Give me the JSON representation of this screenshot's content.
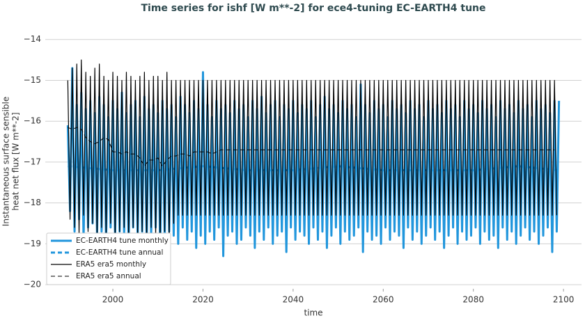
{
  "chart_data": {
    "type": "line",
    "title": "Time series for ishf [W m**-2] for ece4-tuning EC-EARTH4 tune",
    "xlabel": "time",
    "ylabel": [
      "Instantaneous surface sensible",
      "heat net flux [W m**-2]"
    ],
    "xlim": [
      1985,
      2104
    ],
    "ylim": [
      -20.1,
      -13.8
    ],
    "xticks": [
      2000,
      2020,
      2040,
      2060,
      2080,
      2100
    ],
    "yticks": [
      {
        "value": -20,
        "label": "−20"
      },
      {
        "value": -19,
        "label": "−19"
      },
      {
        "value": -18,
        "label": "−18"
      },
      {
        "value": -17,
        "label": "−17"
      },
      {
        "value": -16,
        "label": "−16"
      },
      {
        "value": -15,
        "label": "−15"
      },
      {
        "value": -14,
        "label": "−14"
      }
    ],
    "grid": true,
    "legend": "lower left",
    "x": [
      1990,
      1990.5,
      1991,
      1991.5,
      1992,
      1992.5,
      1993,
      1993.5,
      1994,
      1994.5,
      1995,
      1995.5,
      1996,
      1996.5,
      1997,
      1997.5,
      1998,
      1998.5,
      1999,
      1999.5,
      2000,
      2000.5,
      2001,
      2001.5,
      2002,
      2002.5,
      2003,
      2003.5,
      2004,
      2004.5,
      2005,
      2005.5,
      2006,
      2006.5,
      2007,
      2007.5,
      2008,
      2008.5,
      2009,
      2009.5,
      2010,
      2010.5,
      2011,
      2011.5,
      2012,
      2012.5,
      2013,
      2013.5,
      2014,
      2014.5,
      2015,
      2015.5,
      2016,
      2016.5,
      2017,
      2017.5,
      2018,
      2018.5,
      2019,
      2019.5,
      2020,
      2020.5,
      2021,
      2021.5,
      2022,
      2022.5,
      2023,
      2023.5,
      2024,
      2024.5,
      2025,
      2025.5,
      2026,
      2026.5,
      2027,
      2027.5,
      2028,
      2028.5,
      2029,
      2029.5,
      2030,
      2030.5,
      2031,
      2031.5,
      2032,
      2032.5,
      2033,
      2033.5,
      2034,
      2034.5,
      2035,
      2035.5,
      2036,
      2036.5,
      2037,
      2037.5,
      2038,
      2038.5,
      2039,
      2039.5,
      2040,
      2040.5,
      2041,
      2041.5,
      2042,
      2042.5,
      2043,
      2043.5,
      2044,
      2044.5,
      2045,
      2045.5,
      2046,
      2046.5,
      2047,
      2047.5,
      2048,
      2048.5,
      2049,
      2049.5,
      2050,
      2050.5,
      2051,
      2051.5,
      2052,
      2052.5,
      2053,
      2053.5,
      2054,
      2054.5,
      2055,
      2055.5,
      2056,
      2056.5,
      2057,
      2057.5,
      2058,
      2058.5,
      2059,
      2059.5,
      2060,
      2060.5,
      2061,
      2061.5,
      2062,
      2062.5,
      2063,
      2063.5,
      2064,
      2064.5,
      2065,
      2065.5,
      2066,
      2066.5,
      2067,
      2067.5,
      2068,
      2068.5,
      2069,
      2069.5,
      2070,
      2070.5,
      2071,
      2071.5,
      2072,
      2072.5,
      2073,
      2073.5,
      2074,
      2074.5,
      2075,
      2075.5,
      2076,
      2076.5,
      2077,
      2077.5,
      2078,
      2078.5,
      2079,
      2079.5,
      2080,
      2080.5,
      2081,
      2081.5,
      2082,
      2082.5,
      2083,
      2083.5,
      2084,
      2084.5,
      2085,
      2085.5,
      2086,
      2086.5,
      2087,
      2087.5,
      2088,
      2088.5,
      2089,
      2089.5,
      2090,
      2090.5,
      2091,
      2091.5,
      2092,
      2092.5,
      2093,
      2093.5,
      2094,
      2094.5,
      2095,
      2095.5,
      2096,
      2096.5,
      2097,
      2097.5,
      2098,
      2098.5,
      2099
    ],
    "series": [
      {
        "name": "EC-EARTH4 tune monthly",
        "color": "#2196dc",
        "width": 3,
        "dash": "solid",
        "values": [
          -16.1,
          -18.2,
          -14.7,
          -18.7,
          -15.6,
          -18.4,
          -15.3,
          -18.9,
          -15.7,
          -18.6,
          -15.5,
          -18.5,
          -15.8,
          -18.8,
          -15.4,
          -18.7,
          -15.6,
          -19.0,
          -15.9,
          -18.6,
          -15.5,
          -18.9,
          -15.7,
          -18.7,
          -15.3,
          -18.8,
          -15.8,
          -19.1,
          -15.6,
          -18.6,
          -15.5,
          -18.9,
          -15.9,
          -18.7,
          -15.4,
          -19.0,
          -15.7,
          -18.8,
          -15.6,
          -18.6,
          -15.8,
          -19.2,
          -15.5,
          -18.9,
          -15.7,
          -18.7,
          -15.6,
          -18.8,
          -15.9,
          -19.0,
          -15.4,
          -18.6,
          -15.6,
          -18.9,
          -15.8,
          -18.7,
          -15.5,
          -19.1,
          -15.7,
          -18.8,
          -14.8,
          -19.0,
          -15.6,
          -18.7,
          -15.9,
          -18.9,
          -15.5,
          -18.6,
          -15.7,
          -19.3,
          -15.6,
          -18.8,
          -15.8,
          -18.7,
          -15.5,
          -19.0,
          -15.7,
          -18.9,
          -15.6,
          -18.6,
          -15.9,
          -18.8,
          -15.5,
          -19.1,
          -15.7,
          -18.7,
          -15.4,
          -18.9,
          -15.8,
          -18.6,
          -15.6,
          -19.0,
          -15.5,
          -18.8,
          -15.9,
          -18.7,
          -15.6,
          -19.2,
          -15.7,
          -18.6,
          -15.5,
          -18.9,
          -15.8,
          -18.7,
          -15.6,
          -18.8,
          -15.7,
          -19.0,
          -15.5,
          -18.6,
          -15.9,
          -18.9,
          -15.6,
          -18.7,
          -15.4,
          -19.1,
          -15.7,
          -18.8,
          -15.6,
          -18.6,
          -15.8,
          -19.0,
          -15.5,
          -18.7,
          -15.7,
          -18.9,
          -15.6,
          -18.8,
          -15.9,
          -18.6,
          -15.1,
          -19.2,
          -15.6,
          -18.7,
          -15.8,
          -18.9,
          -15.5,
          -18.8,
          -15.7,
          -19.0,
          -15.6,
          -18.6,
          -15.9,
          -18.9,
          -15.5,
          -18.7,
          -15.7,
          -18.8,
          -15.6,
          -19.1,
          -15.8,
          -18.6,
          -15.5,
          -18.9,
          -15.7,
          -18.7,
          -15.6,
          -19.0,
          -15.9,
          -18.8,
          -15.5,
          -18.6,
          -15.7,
          -18.9,
          -15.6,
          -18.7,
          -15.8,
          -19.1,
          -15.5,
          -18.8,
          -15.7,
          -18.6,
          -15.6,
          -19.0,
          -15.9,
          -18.7,
          -15.5,
          -18.9,
          -15.7,
          -18.8,
          -15.6,
          -18.6,
          -15.8,
          -19.0,
          -15.5,
          -18.7,
          -15.7,
          -18.9,
          -15.6,
          -18.8,
          -15.9,
          -19.1,
          -15.5,
          -18.6,
          -15.7,
          -18.9,
          -15.6,
          -18.7,
          -15.8,
          -19.0,
          -15.5,
          -18.8,
          -15.7,
          -18.6,
          -15.6,
          -18.9,
          -15.9,
          -18.7,
          -15.5,
          -19.0,
          -15.7,
          -18.8,
          -15.6,
          -18.6,
          -15.8,
          -19.2,
          -15.5,
          -18.7,
          -15.5
        ]
      },
      {
        "name": "EC-EARTH4 tune annual",
        "color": "#2196dc",
        "width": 3,
        "dash": "dashed",
        "x": [
          1990,
          2000,
          2010,
          2020,
          2030,
          2040,
          2050,
          2060,
          2070,
          2080,
          2090,
          2099
        ],
        "values": [
          -17.1,
          -17.2,
          -17.2,
          -17.1,
          -17.2,
          -17.2,
          -17.1,
          -17.2,
          -17.2,
          -17.2,
          -17.1,
          -17.2
        ]
      },
      {
        "name": "ERA5 era5 monthly",
        "color": "#000000",
        "width": 1.2,
        "dash": "solid",
        "values": [
          -15,
          -18.4,
          -14.7,
          -18.6,
          -14.6,
          -18.8,
          -14.5,
          -18.3,
          -14.8,
          -18.7,
          -14.9,
          -18.5,
          -14.7,
          -18.9,
          -14.6,
          -18.6,
          -14.9,
          -18.8,
          -15,
          -18.5,
          -14.8,
          -18.9,
          -14.9,
          -18.7,
          -15,
          -18.6,
          -14.8,
          -18.9,
          -14.9,
          -18.6,
          -15,
          -18.8,
          -14.9,
          -18.7,
          -14.8,
          -18.9,
          -15,
          -18.6,
          -14.9,
          -18.8,
          -14.9,
          -18.9,
          -15,
          -18.7,
          -14.8,
          -18.9,
          -15,
          -18.5,
          -15,
          -18.3,
          -15,
          -18.3,
          -15,
          -18.3,
          -15,
          -18.3,
          -15,
          -18.3,
          -15,
          -18.3,
          -15,
          -18.3,
          -15,
          -18.3,
          -15,
          -18.3,
          -15,
          -18.3,
          -15,
          -18.3,
          -15,
          -18.3,
          -15,
          -18.3,
          -15,
          -18.3,
          -15,
          -18.3,
          -15,
          -18.3,
          -15,
          -18.3,
          -15,
          -18.3,
          -15,
          -18.3,
          -15,
          -18.3,
          -15,
          -18.3,
          -15,
          -18.3,
          -15,
          -18.3,
          -15,
          -18.3,
          -15,
          -18.3,
          -15,
          -18.3,
          -15,
          -18.3,
          -15,
          -18.3,
          -15,
          -18.3,
          -15,
          -18.3,
          -15,
          -18.3,
          -15,
          -18.3,
          -15,
          -18.3,
          -15,
          -18.3,
          -15,
          -18.3,
          -15,
          -18.3,
          -15,
          -18.3,
          -15,
          -18.3,
          -15,
          -18.3,
          -15,
          -18.3,
          -15,
          -18.3,
          -15,
          -18.3,
          -15,
          -18.3,
          -15,
          -18.3,
          -15,
          -18.3,
          -15,
          -18.3,
          -15,
          -18.3,
          -15,
          -18.3,
          -15,
          -18.3,
          -15,
          -18.3,
          -15,
          -18.3,
          -15,
          -18.3,
          -15,
          -18.3,
          -15,
          -18.3,
          -15,
          -18.3,
          -15,
          -18.3,
          -15,
          -18.3,
          -15,
          -18.3,
          -15,
          -18.3,
          -15,
          -18.3,
          -15,
          -18.3,
          -15,
          -18.3,
          -15,
          -18.3,
          -15,
          -18.3,
          -15,
          -18.3,
          -15,
          -18.3,
          -15,
          -18.3,
          -15,
          -18.3,
          -15,
          -18.3,
          -15,
          -18.3,
          -15,
          -18.3,
          -15,
          -18.3,
          -15,
          -18.3,
          -15,
          -18.3,
          -15,
          -18.3,
          -15,
          -18.3,
          -15,
          -18.3,
          -15,
          -18.3,
          -15,
          -18.3,
          -15,
          -18.3,
          -15,
          -18.3,
          -15,
          -18.3,
          -15,
          -18.3,
          -15,
          -18.3,
          -15,
          -18.3,
          null
        ]
      },
      {
        "name": "ERA5 era5 annual",
        "color": "#000000",
        "width": 1,
        "dash": "dashed",
        "x": [
          1990,
          1991,
          1992,
          1993,
          1994,
          1995,
          1996,
          1997,
          1998,
          1999,
          2000,
          2001,
          2002,
          2003,
          2004,
          2005,
          2006,
          2007,
          2008,
          2009,
          2010,
          2011,
          2012,
          2013,
          2014,
          2015,
          2016,
          2017,
          2018,
          2019,
          2020,
          2021,
          2022,
          2023,
          2024,
          2098
        ],
        "values": [
          -16.15,
          -16.2,
          -16.15,
          -16.2,
          -16.4,
          -16.5,
          -16.55,
          -16.5,
          -16.4,
          -16.45,
          -16.75,
          -16.75,
          -16.8,
          -16.75,
          -16.8,
          -16.8,
          -16.9,
          -17.1,
          -16.95,
          -16.95,
          -16.9,
          -17.1,
          -16.95,
          -16.85,
          -16.85,
          -16.8,
          -16.8,
          -16.85,
          -16.75,
          -16.75,
          -16.75,
          -16.75,
          -16.8,
          -16.75,
          -16.7,
          -16.7
        ]
      }
    ]
  }
}
